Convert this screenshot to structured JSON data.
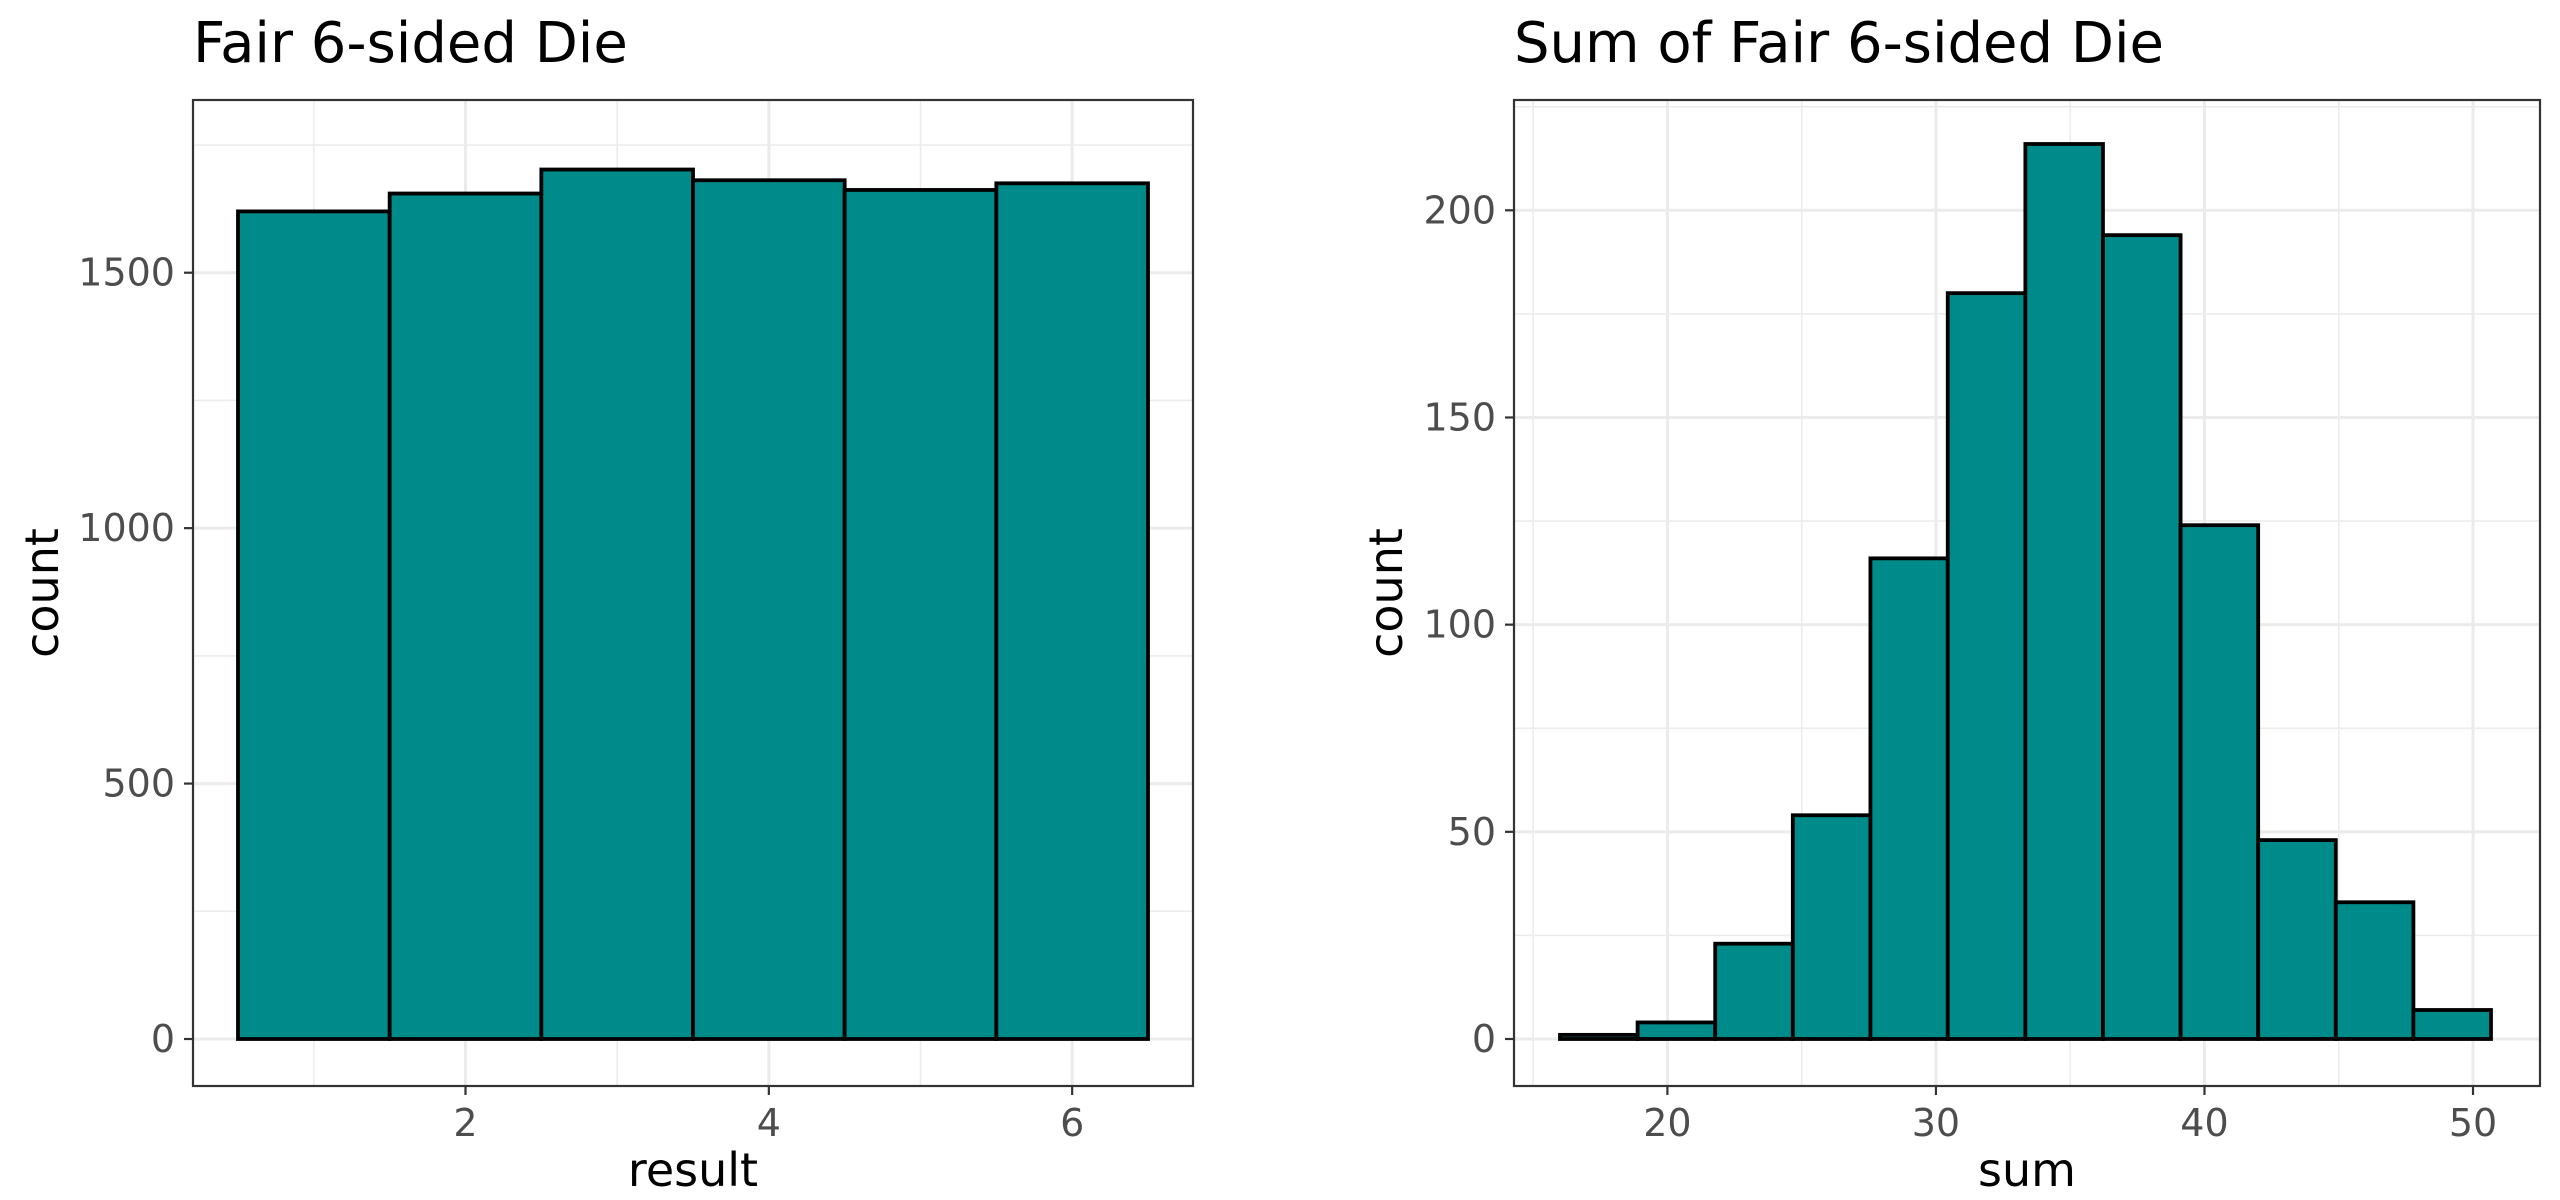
{
  "chart_data": [
    {
      "type": "bar",
      "title": "Fair 6-sided Die",
      "xlabel": "result",
      "ylabel": "count",
      "categories": [
        1,
        2,
        3,
        4,
        5,
        6
      ],
      "values": [
        1620,
        1655,
        1702,
        1681,
        1662,
        1675
      ],
      "xlim": [
        0.5,
        6.5
      ],
      "ylim": [
        0,
        1750
      ],
      "x_ticks": [
        2,
        4,
        6
      ],
      "y_ticks": [
        0,
        500,
        1000,
        1500
      ],
      "fill_color": "#008B8B",
      "outline_color": "#000000",
      "grid": true
    },
    {
      "type": "bar",
      "title": "Sum of Fair 6-sided Die",
      "xlabel": "sum",
      "ylabel": "count",
      "bin_edges": [
        16,
        18.89,
        21.78,
        24.67,
        27.56,
        30.44,
        33.33,
        36.22,
        39.11,
        42,
        44.89,
        47.78,
        50.67
      ],
      "values": [
        1,
        4,
        23,
        54,
        116,
        180,
        216,
        194,
        124,
        48,
        33,
        7
      ],
      "xlim": [
        16,
        50.67
      ],
      "ylim": [
        0,
        216
      ],
      "x_ticks": [
        20,
        30,
        40,
        50
      ],
      "y_ticks": [
        0,
        50,
        100,
        150,
        200
      ],
      "fill_color": "#008B8B",
      "outline_color": "#000000",
      "grid": true
    }
  ]
}
